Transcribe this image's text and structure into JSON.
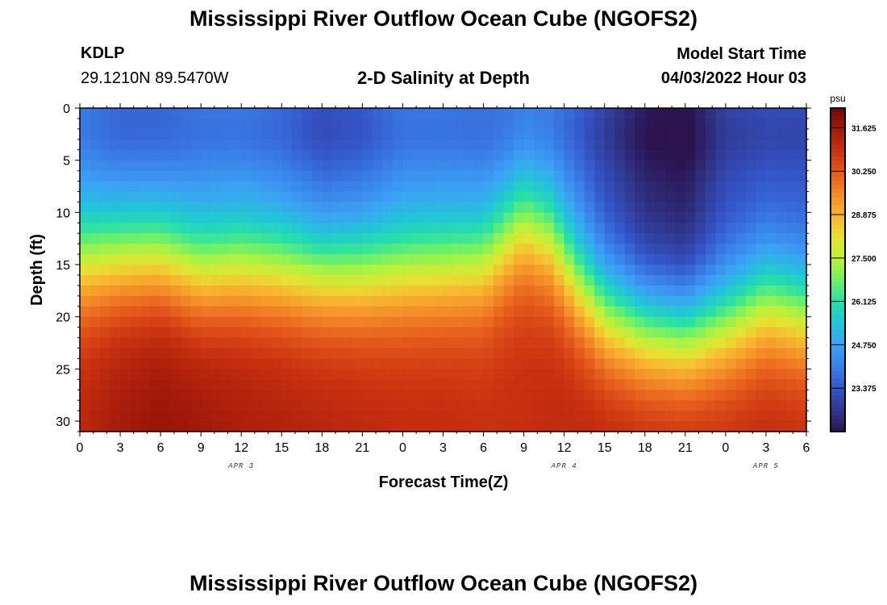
{
  "header": {
    "title": "Mississippi River Outflow Ocean Cube (NGOFS2)",
    "station_id": "KDLP",
    "station_coords": "29.1210N  89.5470W",
    "plot_title": "2-D Salinity at Depth",
    "model_start_label": "Model Start Time",
    "model_start_value": "04/03/2022 Hour 03"
  },
  "footer": {
    "title": "Mississippi River Outflow Ocean Cube (NGOFS2)"
  },
  "chart_data": {
    "type": "heatmap",
    "xlabel": "Forecast Time(Z)",
    "ylabel": "Depth (ft)",
    "x_tick_labels": [
      "0",
      "3",
      "6",
      "9",
      "12",
      "15",
      "18",
      "21",
      "0",
      "3",
      "6",
      "9",
      "12",
      "15",
      "18",
      "21",
      "0",
      "3",
      "6"
    ],
    "x_range_hours": [
      0,
      54
    ],
    "date_labels": [
      {
        "label": "APR 3",
        "hour": 12
      },
      {
        "label": "APR 4",
        "hour": 36
      },
      {
        "label": "APR 5",
        "hour": 51
      }
    ],
    "y_ticks": [
      0,
      5,
      10,
      15,
      20,
      25,
      30
    ],
    "y_range": [
      0,
      31
    ],
    "y_inverted": true,
    "colorbar": {
      "unit": "psu",
      "ticks": [
        "31.625",
        "30.250",
        "28.875",
        "27.500",
        "26.125",
        "24.750",
        "23.375"
      ],
      "range": [
        22.0,
        32.25
      ],
      "colors": [
        "#2b1450",
        "#30388f",
        "#3455c8",
        "#3a7fe8",
        "#3ca2f5",
        "#22c4d8",
        "#27dfa9",
        "#6df06a",
        "#b8f23b",
        "#e7e134",
        "#f8b530",
        "#f38a28",
        "#e55a1c",
        "#c93210",
        "#a31a0a",
        "#6e0a05"
      ]
    },
    "time_profile": [
      {
        "hour": 0,
        "surface": 24.0,
        "halocline_ft": 14.5,
        "bottom": 31.2
      },
      {
        "hour": 3,
        "surface": 23.6,
        "halocline_ft": 14.0,
        "bottom": 31.6
      },
      {
        "hour": 6,
        "surface": 23.6,
        "halocline_ft": 14.0,
        "bottom": 31.8
      },
      {
        "hour": 9,
        "surface": 23.9,
        "halocline_ft": 15.5,
        "bottom": 31.7
      },
      {
        "hour": 12,
        "surface": 23.9,
        "halocline_ft": 15.0,
        "bottom": 31.5
      },
      {
        "hour": 15,
        "surface": 23.7,
        "halocline_ft": 15.2,
        "bottom": 31.4
      },
      {
        "hour": 18,
        "surface": 23.2,
        "halocline_ft": 15.5,
        "bottom": 31.3
      },
      {
        "hour": 21,
        "surface": 23.4,
        "halocline_ft": 15.5,
        "bottom": 31.2
      },
      {
        "hour": 24,
        "surface": 23.9,
        "halocline_ft": 15.3,
        "bottom": 31.1
      },
      {
        "hour": 27,
        "surface": 23.9,
        "halocline_ft": 15.0,
        "bottom": 31.1
      },
      {
        "hour": 30,
        "surface": 23.8,
        "halocline_ft": 14.5,
        "bottom": 31.0
      },
      {
        "hour": 32,
        "surface": 23.8,
        "halocline_ft": 12.0,
        "bottom": 31.0
      },
      {
        "hour": 33,
        "surface": 23.9,
        "halocline_ft": 11.0,
        "bottom": 31.0
      },
      {
        "hour": 35,
        "surface": 23.9,
        "halocline_ft": 12.5,
        "bottom": 31.1
      },
      {
        "hour": 37,
        "surface": 23.6,
        "halocline_ft": 16.5,
        "bottom": 31.2
      },
      {
        "hour": 39,
        "surface": 23.0,
        "halocline_ft": 19.5,
        "bottom": 31.3
      },
      {
        "hour": 42,
        "surface": 22.2,
        "halocline_ft": 21.0,
        "bottom": 31.3
      },
      {
        "hour": 45,
        "surface": 22.0,
        "halocline_ft": 21.5,
        "bottom": 31.3
      },
      {
        "hour": 48,
        "surface": 23.0,
        "halocline_ft": 20.5,
        "bottom": 31.2
      },
      {
        "hour": 51,
        "surface": 23.2,
        "halocline_ft": 18.5,
        "bottom": 31.2
      },
      {
        "hour": 54,
        "surface": 23.2,
        "halocline_ft": 19.5,
        "bottom": 31.2
      }
    ]
  }
}
